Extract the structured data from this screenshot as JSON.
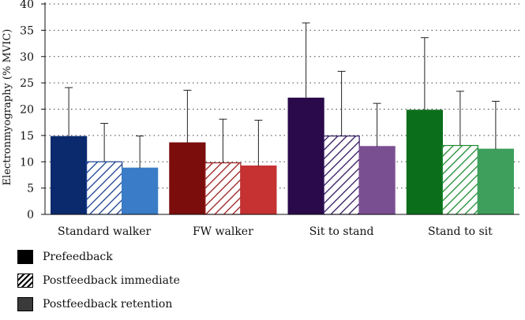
{
  "chart_data": {
    "type": "bar",
    "ylabel": "Electronmyography (% MVIC)",
    "ylim": [
      0,
      40
    ],
    "yticks": [
      0,
      5,
      10,
      15,
      20,
      25,
      30,
      35,
      40
    ],
    "grid": "horizontal dotted",
    "legend_position": "bottom-left",
    "categories": [
      "Standard walker",
      "FW walker",
      "Sit to stand",
      "Stand to sit"
    ],
    "category_colors": [
      [
        "#0b2a6e",
        "#1b3f8f",
        "#3a7cc7"
      ],
      [
        "#7c0d0d",
        "#9a1d1d",
        "#c63232"
      ],
      [
        "#2a0a4a",
        "#2f1660",
        "#7a4f92"
      ],
      [
        "#0b6e1b",
        "#1f8a30",
        "#3e9f5c"
      ]
    ],
    "series": [
      {
        "name": "Prefeedback",
        "pattern": "solid",
        "values": [
          14.8,
          13.6,
          22.1,
          19.8
        ],
        "errors": [
          9.3,
          10.0,
          14.3,
          13.8
        ]
      },
      {
        "name": "Postfeedback immediate",
        "pattern": "hatched",
        "values": [
          10.0,
          9.8,
          14.9,
          13.1
        ],
        "errors": [
          7.3,
          8.3,
          12.3,
          10.3
        ]
      },
      {
        "name": "Postfeedback retention",
        "pattern": "solid",
        "values": [
          8.8,
          9.2,
          12.9,
          12.4
        ],
        "errors": [
          6.1,
          8.7,
          8.2,
          9.1
        ]
      }
    ],
    "legend_swatch_colors": [
      "#000000",
      "#ffffff",
      "#3a3a3a"
    ]
  }
}
